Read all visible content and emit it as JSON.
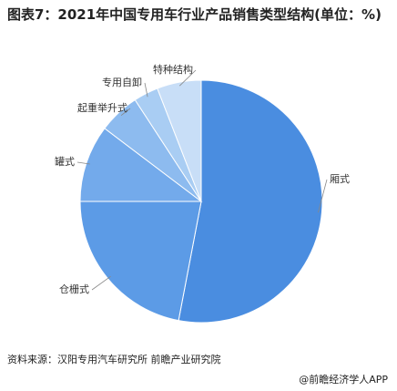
{
  "chart_data": {
    "type": "pie",
    "title": "图表7：2021年中国专用车行业产品销售类型结构(单位：%)",
    "categories": [
      "厢式",
      "仓栅式",
      "罐式",
      "起重举升式",
      "专用自卸",
      "特种结构"
    ],
    "values": [
      53,
      22,
      10.3,
      5.5,
      3.3,
      5.9
    ],
    "colors": [
      "#4a8de0",
      "#5c9be6",
      "#73aaeb",
      "#8dbbef",
      "#a9cdf3",
      "#c8def7"
    ],
    "source": "资料来源：汉阳专用汽车研究所 前瞻产业研究院",
    "brand": "@前瞻经济学人APP"
  }
}
